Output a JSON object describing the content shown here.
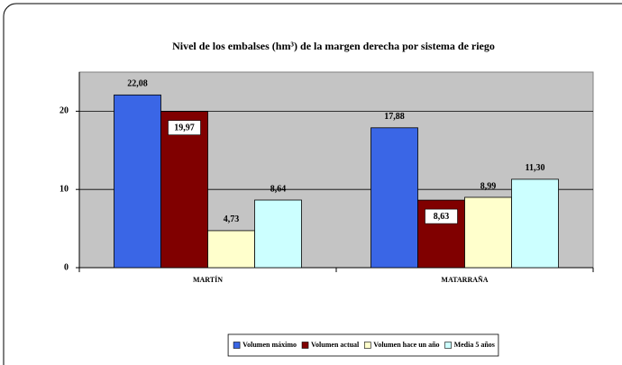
{
  "chart_data": {
    "type": "bar",
    "title": "Nivel de los embalses (hm³) de la margen derecha por sistema de riego",
    "categories": [
      "MARTÍN",
      "MATARRAÑA"
    ],
    "series": [
      {
        "name": "Volumen máximo",
        "color": "#3a66e6",
        "values": [
          22.08,
          17.88
        ],
        "value_labels": [
          "22,08",
          "17,88"
        ]
      },
      {
        "name": "Volumen actual",
        "color": "#800000",
        "values": [
          19.97,
          8.63
        ],
        "value_labels": [
          "19,97",
          "8,63"
        ]
      },
      {
        "name": "Volumen hace un año",
        "color": "#ffffcc",
        "values": [
          4.73,
          8.99
        ],
        "value_labels": [
          "4,73",
          "8,99"
        ]
      },
      {
        "name": "Media 5 años",
        "color": "#ccffff",
        "values": [
          8.64,
          11.3
        ],
        "value_labels": [
          "8,64",
          "11,30"
        ]
      }
    ],
    "ylim": [
      0,
      25
    ],
    "yticks": [
      0,
      10,
      20
    ],
    "grid": true,
    "legend": "bottom"
  }
}
